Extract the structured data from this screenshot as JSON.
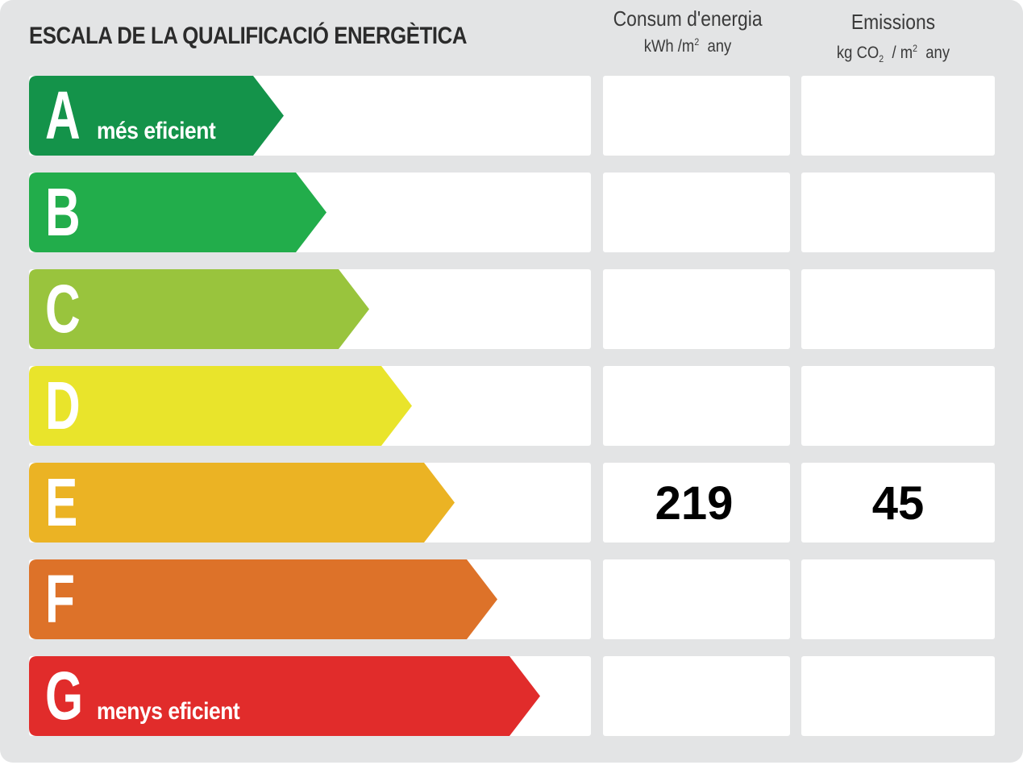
{
  "title": "ESCALA DE LA QUALIFICACIÓ ENERGÈTICA",
  "columns": {
    "energy": {
      "title": "Consum d'energia",
      "unit_pre": "kWh /m",
      "unit_sup": "2",
      "unit_post": "any"
    },
    "emissions": {
      "title": "Emissions",
      "unit_pre": "kg CO",
      "unit_sub": "2",
      "unit_mid": "/ m",
      "unit_sup": "2",
      "unit_post": "any"
    }
  },
  "ratings": [
    {
      "letter": "A",
      "label": "més eficient",
      "color": "#14934a"
    },
    {
      "letter": "B",
      "label": "",
      "color": "#22ad4b"
    },
    {
      "letter": "C",
      "label": "",
      "color": "#99c43d"
    },
    {
      "letter": "D",
      "label": "",
      "color": "#e9e42b"
    },
    {
      "letter": "E",
      "label": "",
      "color": "#ebb324"
    },
    {
      "letter": "F",
      "label": "",
      "color": "#dd7229"
    },
    {
      "letter": "G",
      "label": "menys eficient",
      "color": "#e12c2b"
    }
  ],
  "result": {
    "rating": "E",
    "energy_value": "219",
    "emissions_value": "45"
  }
}
